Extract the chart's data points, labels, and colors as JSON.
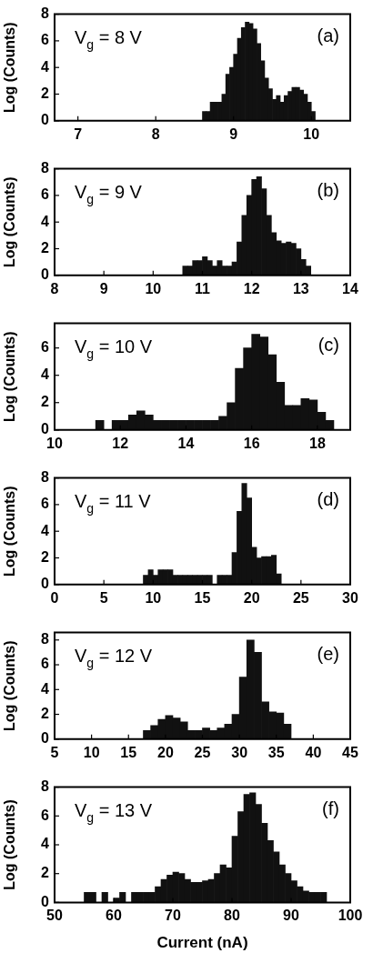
{
  "chart_data": [
    {
      "type": "histogram",
      "ylabel": "Log (Counts)",
      "color": "#111111",
      "grid": false,
      "xlim": [
        6.7,
        10.5
      ],
      "xticks": [
        7,
        8,
        9,
        10
      ],
      "ylim": [
        0,
        8
      ],
      "yticks": [
        0,
        2,
        4,
        6,
        8
      ],
      "annotations": [
        "V$_{g}$ = 8 V",
        "(a)"
      ],
      "bins": [
        8.6,
        8.65,
        8.7,
        8.75,
        8.8,
        8.85,
        8.9,
        8.95,
        9.0,
        9.05,
        9.1,
        9.15,
        9.2,
        9.25,
        9.3,
        9.35,
        9.4,
        9.45,
        9.5,
        9.55,
        9.6,
        9.65,
        9.7,
        9.75,
        9.8,
        9.85,
        9.9,
        9.95,
        10.0,
        10.05
      ],
      "values": [
        0.7,
        0.7,
        1.4,
        1.4,
        1.4,
        2.0,
        3.5,
        4.0,
        5.0,
        6.2,
        7.0,
        7.4,
        7.3,
        6.9,
        5.8,
        4.5,
        3.2,
        2.4,
        1.6,
        1.9,
        1.4,
        1.9,
        2.2,
        2.5,
        2.5,
        2.3,
        2.0,
        1.4,
        0.7
      ]
    },
    {
      "type": "histogram",
      "ylabel": "Log (Counts)",
      "color": "#111111",
      "grid": false,
      "xlim": [
        8,
        14
      ],
      "xticks": [
        8,
        9,
        10,
        11,
        12,
        13,
        14
      ],
      "ylim": [
        0,
        8
      ],
      "yticks": [
        0,
        2,
        4,
        6,
        8
      ],
      "annotations": [
        "V$_{g}$ = 9 V",
        "(b)"
      ],
      "bins": [
        10.6,
        10.7,
        10.8,
        10.9,
        11.0,
        11.1,
        11.2,
        11.3,
        11.4,
        11.5,
        11.6,
        11.7,
        11.8,
        11.9,
        12.0,
        12.1,
        12.2,
        12.3,
        12.4,
        12.5,
        12.6,
        12.7,
        12.8,
        12.9,
        13.0,
        13.1,
        13.2
      ],
      "values": [
        0.7,
        0.7,
        1.1,
        1.1,
        1.4,
        1.1,
        0.7,
        1.1,
        0.7,
        0.7,
        1.0,
        2.5,
        4.5,
        6.0,
        7.2,
        7.4,
        6.5,
        4.5,
        3.2,
        2.6,
        2.4,
        2.5,
        2.4,
        2.0,
        1.2,
        0.7
      ]
    },
    {
      "type": "histogram",
      "ylabel": "Log (Counts)",
      "color": "#111111",
      "grid": false,
      "xlim": [
        10,
        19
      ],
      "xticks": [
        10,
        12,
        14,
        16,
        18
      ],
      "ylim": [
        0,
        7.8
      ],
      "yticks": [
        0,
        2,
        4,
        6
      ],
      "annotations": [
        "V$_{g}$ = 10 V",
        "(c)"
      ],
      "bins": [
        11.25,
        11.5,
        11.75,
        12.0,
        12.25,
        12.5,
        12.75,
        13.0,
        13.25,
        13.5,
        13.75,
        14.0,
        14.25,
        14.5,
        14.75,
        15.0,
        15.25,
        15.5,
        15.75,
        16.0,
        16.25,
        16.5,
        16.75,
        17.0,
        17.25,
        17.5,
        17.75,
        18.0,
        18.25,
        18.5
      ],
      "values": [
        0.7,
        0,
        0.7,
        0.7,
        1.1,
        1.4,
        1.1,
        0.7,
        0.7,
        0.7,
        0.7,
        0.7,
        0.7,
        0.7,
        0.7,
        1.0,
        2.0,
        4.5,
        6.0,
        7.0,
        6.8,
        5.5,
        3.5,
        1.8,
        1.8,
        2.3,
        2.2,
        1.3,
        0.7
      ]
    },
    {
      "type": "histogram",
      "ylabel": "Log (Counts)",
      "color": "#111111",
      "grid": false,
      "xlim": [
        0,
        30
      ],
      "xticks": [
        0,
        5,
        10,
        15,
        20,
        25,
        30
      ],
      "ylim": [
        0,
        8
      ],
      "yticks": [
        0,
        2,
        4,
        6,
        8
      ],
      "annotations": [
        "V$_{g}$ = 11 V",
        "(d)"
      ],
      "bins": [
        9,
        9.5,
        10,
        10.5,
        11,
        11.5,
        12,
        12.5,
        13,
        13.5,
        14,
        14.5,
        15,
        15.5,
        16,
        16.5,
        17,
        17.5,
        18,
        18.5,
        19,
        19.5,
        20,
        20.5,
        21,
        21.5,
        22,
        22.5,
        23
      ],
      "values": [
        0.7,
        1.1,
        0.7,
        1.1,
        1.1,
        1.1,
        0.7,
        0.7,
        0.7,
        0.7,
        0.7,
        0.7,
        0.7,
        0.7,
        0,
        0.7,
        0.7,
        0.7,
        2.4,
        5.5,
        7.6,
        6.5,
        2.8,
        2.0,
        2.1,
        2.1,
        2.2,
        0.8
      ]
    },
    {
      "type": "histogram",
      "ylabel": "Log (Counts)",
      "color": "#111111",
      "grid": false,
      "xlim": [
        5,
        45
      ],
      "xticks": [
        5,
        10,
        15,
        20,
        25,
        30,
        35,
        40,
        45
      ],
      "ylim": [
        0,
        8.6
      ],
      "yticks": [
        0,
        2,
        4,
        6,
        8
      ],
      "annotations": [
        "V$_{g}$ = 12 V",
        "(e)"
      ],
      "bins": [
        17,
        18,
        19,
        20,
        21,
        22,
        23,
        24,
        25,
        26,
        27,
        28,
        29,
        30,
        31,
        32,
        33,
        34,
        35,
        36,
        37
      ],
      "values": [
        0.7,
        1.1,
        1.6,
        1.9,
        1.7,
        1.4,
        0.7,
        0.7,
        0.9,
        0.7,
        0.9,
        1.2,
        2.0,
        5.0,
        8.0,
        7.0,
        3.0,
        2.2,
        2.1,
        1.2
      ]
    },
    {
      "type": "histogram",
      "ylabel": "Log (Counts)",
      "xlabel": "Current (nA)",
      "color": "#111111",
      "grid": false,
      "xlim": [
        50,
        100
      ],
      "xticks": [
        50,
        60,
        70,
        80,
        90,
        100
      ],
      "ylim": [
        0,
        8
      ],
      "yticks": [
        0,
        2,
        4,
        6,
        8
      ],
      "annotations": [
        "V$_{g}$ = 13 V",
        "(f)"
      ],
      "bins": [
        55,
        56,
        57,
        58,
        59,
        60,
        61,
        62,
        63,
        64,
        65,
        66,
        67,
        68,
        69,
        70,
        71,
        72,
        73,
        74,
        75,
        76,
        77,
        78,
        79,
        80,
        81,
        82,
        83,
        84,
        85,
        86,
        87,
        88,
        89,
        90,
        91,
        92,
        93,
        94,
        95,
        96
      ],
      "values": [
        0.7,
        0.7,
        0,
        0.7,
        0,
        0.3,
        0.7,
        0,
        0.7,
        0.7,
        0.7,
        0.7,
        1.1,
        1.6,
        1.9,
        2.1,
        2.0,
        1.6,
        1.4,
        1.4,
        1.5,
        1.6,
        2.0,
        2.6,
        2.4,
        4.6,
        6.3,
        7.5,
        7.6,
        6.8,
        5.5,
        4.3,
        3.5,
        2.6,
        2.0,
        1.5,
        1.1,
        0.8,
        0.7,
        0.7,
        0.7
      ]
    }
  ]
}
